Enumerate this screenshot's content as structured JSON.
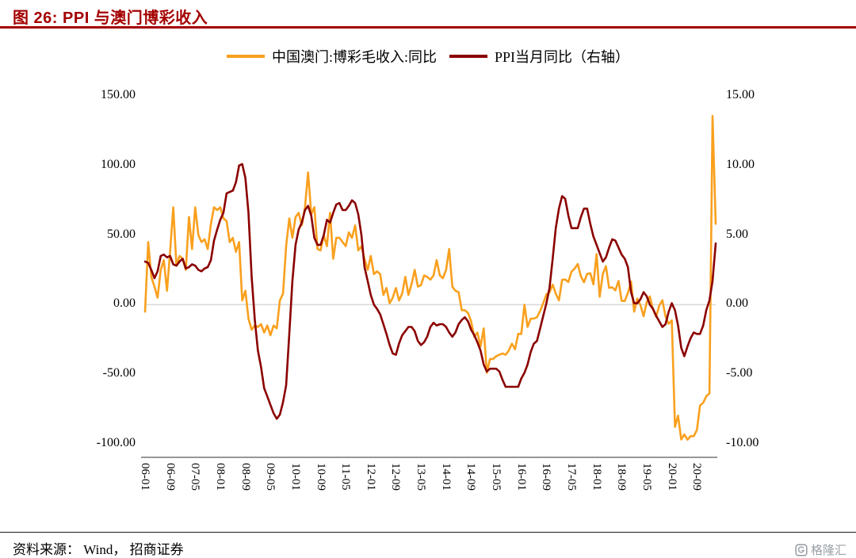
{
  "title": "图 26:  PPI 与澳门博彩收入",
  "source_note": "资料来源： Wind， 招商证券",
  "watermark": "格隆汇",
  "colors": {
    "title": "#A40000",
    "rule": "#A40000",
    "macau_line": "#F9A01E",
    "ppi_line": "#8B0000",
    "zero_line": "#D9D9D9",
    "axis_line": "#595959",
    "watermark": "#9AA0A6"
  },
  "chart_data": {
    "type": "line",
    "title": "图 26:  PPI 与澳门博彩收入",
    "x_start": "2006-01",
    "x_freq": "monthly",
    "x_tick_step": 8,
    "x_tick_labels": [
      "06-01",
      "06-09",
      "07-05",
      "08-01",
      "08-09",
      "09-05",
      "10-01",
      "10-09",
      "11-05",
      "12-01",
      "12-09",
      "13-05",
      "14-01",
      "14-09",
      "15-05",
      "16-01",
      "16-09",
      "17-05",
      "18-01",
      "18-09",
      "19-05",
      "20-01",
      "20-09"
    ],
    "left_axis": {
      "ticks": [
        "150.00",
        "100.00",
        "50.00",
        "0.00",
        "-50.00",
        "-100.00"
      ],
      "min": -100,
      "max": 150
    },
    "right_axis": {
      "ticks": [
        "15.00",
        "10.00",
        "5.00",
        "0.00",
        "-5.00",
        "-10.00"
      ],
      "min": -10,
      "max": 15
    },
    "grid": "zero-line-only",
    "legend_position": "top-center",
    "series": [
      {
        "name": "中国澳门:博彩毛收入:同比",
        "axis": "left",
        "color": "#F9A01E",
        "values": [
          -5,
          45,
          20,
          13,
          5,
          25,
          32,
          10,
          38,
          70,
          28,
          35,
          33,
          25,
          63,
          40,
          70,
          50,
          45,
          47,
          40,
          58,
          70,
          68,
          70,
          62,
          60,
          45,
          48,
          38,
          45,
          3,
          10,
          -10,
          -18,
          -15,
          -16,
          -14,
          -20,
          -15,
          -22,
          -15,
          -17,
          3,
          8,
          42,
          62,
          48,
          63,
          66,
          57,
          70,
          95,
          65,
          70,
          40,
          39,
          50,
          42,
          66,
          33,
          48,
          48,
          45,
          42,
          52,
          48,
          57,
          39,
          42,
          33,
          25,
          35,
          22,
          24,
          22,
          7,
          12,
          1,
          5,
          12,
          3,
          8,
          20,
          7,
          15,
          25,
          13,
          14,
          21,
          20,
          18,
          21,
          32,
          21,
          19,
          25,
          40,
          13,
          10,
          9,
          -4,
          -4,
          -6,
          -12,
          -23,
          -20,
          -30,
          -17,
          -49,
          -39,
          -39,
          -37,
          -36,
          -35,
          -36,
          -33,
          -28,
          -32,
          -21,
          -21,
          -0.1,
          -16,
          -10,
          -10,
          -9,
          -4.5,
          1.1,
          7.4,
          8.8,
          14.4,
          8,
          3.1,
          17.8,
          18.1,
          16.3,
          23.7,
          25.9,
          29.2,
          20.4,
          16.1,
          22.1,
          22.6,
          14.6,
          36.4,
          5.7,
          22.2,
          27.6,
          12.1,
          12.5,
          10.3,
          17.1,
          2.8,
          2.6,
          8.5,
          16.6,
          -5,
          4.4,
          -0.4,
          -8.3,
          1.8,
          5.9,
          -3.5,
          -8.6,
          -0.6,
          3.2,
          -8.5,
          -13.7,
          -11.3,
          -87.8,
          -79.7,
          -96.8,
          -93.2,
          -97,
          -94.5,
          -94.5,
          -90,
          -72.5,
          -70.5,
          -65.8,
          -63.7,
          135.6,
          58.1
        ]
      },
      {
        "name": "PPI当月同比（右轴）",
        "axis": "right",
        "color": "#8B0000",
        "values": [
          3.1,
          3,
          2.5,
          1.9,
          2.4,
          3.5,
          3.6,
          3.4,
          3.5,
          2.9,
          2.8,
          3.1,
          3.3,
          2.6,
          2.7,
          2.9,
          2.8,
          2.5,
          2.4,
          2.6,
          2.7,
          3.2,
          4.6,
          5.4,
          6.1,
          6.6,
          8,
          8.1,
          8.2,
          8.8,
          10,
          10.1,
          9.1,
          6.6,
          2,
          -1.1,
          -3.3,
          -4.5,
          -6,
          -6.6,
          -7.2,
          -7.8,
          -8.2,
          -7.9,
          -7,
          -5.8,
          -2.1,
          1.7,
          4.3,
          5.4,
          5.9,
          6.8,
          7.1,
          6.4,
          4.8,
          4.3,
          4.3,
          5,
          6.1,
          5.9,
          6.6,
          7.2,
          7.3,
          6.8,
          6.8,
          7.1,
          7.5,
          7.3,
          6.5,
          5,
          2.7,
          1.7,
          0.7,
          0,
          -0.3,
          -0.7,
          -1.4,
          -2.1,
          -2.9,
          -3.5,
          -3.6,
          -2.8,
          -2.2,
          -1.9,
          -1.6,
          -1.6,
          -1.9,
          -2.6,
          -2.9,
          -2.7,
          -2.3,
          -1.6,
          -1.3,
          -1.5,
          -1.4,
          -1.4,
          -1.6,
          -2,
          -2.3,
          -2,
          -1.4,
          -1.1,
          -0.9,
          -1.2,
          -1.8,
          -2.2,
          -2.7,
          -3.3,
          -4.3,
          -4.8,
          -4.6,
          -4.6,
          -4.6,
          -4.8,
          -5.4,
          -5.9,
          -5.9,
          -5.9,
          -5.9,
          -5.9,
          -5.3,
          -4.9,
          -4.3,
          -3.4,
          -2.8,
          -2.6,
          -1.7,
          -0.8,
          0.1,
          1.2,
          3.3,
          5.5,
          6.9,
          7.8,
          7.6,
          6.4,
          5.5,
          5.5,
          5.5,
          6.3,
          6.9,
          6.9,
          5.8,
          4.9,
          4.3,
          3.7,
          3.1,
          3.4,
          4.1,
          4.7,
          4.6,
          4.1,
          3.6,
          3.3,
          2.7,
          0.9,
          0.1,
          0.1,
          0.4,
          0.9,
          0.6,
          0,
          -0.3,
          -0.8,
          -1.2,
          -1.6,
          -1.4,
          -0.5,
          0.1,
          -0.4,
          -1.5,
          -3.1,
          -3.7,
          -3,
          -2.4,
          -2,
          -2.1,
          -2.1,
          -1.5,
          -0.4,
          0.3,
          1.7,
          4.4
        ]
      }
    ]
  }
}
